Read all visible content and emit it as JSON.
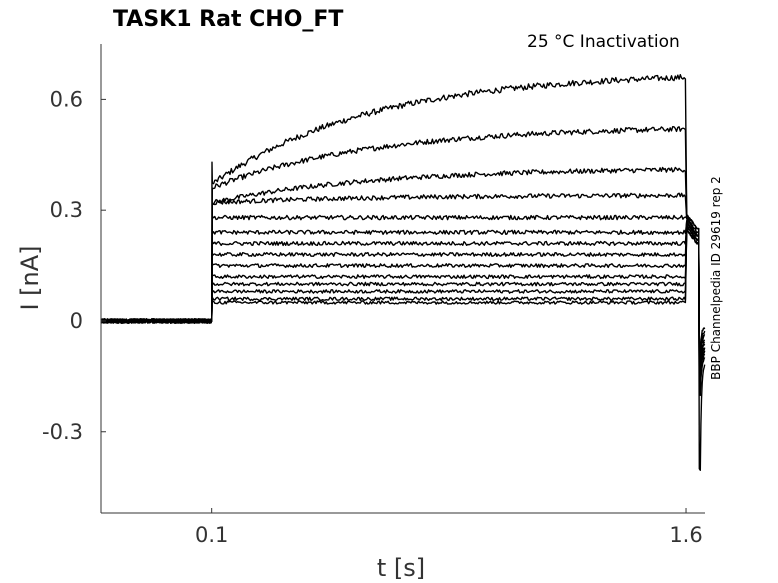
{
  "chart_data": {
    "type": "line",
    "title": "TASK1  Rat  CHO_FT",
    "subtitle": "25 °C  Inactivation",
    "side_label": "BBP Channelpedia ID 29619 rep 2",
    "xlabel": "t [s]",
    "ylabel": "I [nA]",
    "xlim": [
      -0.25,
      1.66
    ],
    "ylim": [
      -0.52,
      0.75
    ],
    "xticks": [
      0.1,
      1.6
    ],
    "xtick_labels": [
      "0.1",
      "1.6"
    ],
    "yticks": [
      0.6,
      0.3,
      0,
      -0.3
    ],
    "ytick_labels": [
      "0.6",
      "0.3",
      "0",
      "-0.3"
    ],
    "grid": false,
    "protocol": {
      "baseline_end": 0.1,
      "step_end": 1.6,
      "tail_end": 1.66,
      "baseline_level": 0.0
    },
    "series": [
      {
        "start": 0.37,
        "end": 0.66,
        "tail_start": 0.29,
        "tail_end": 0.25,
        "after_min": -0.07,
        "after_end": -0.02
      },
      {
        "start": 0.36,
        "end": 0.52,
        "tail_start": 0.29,
        "tail_end": 0.25,
        "after_min": -0.08,
        "after_end": -0.03
      },
      {
        "start": 0.32,
        "end": 0.41,
        "tail_start": 0.28,
        "tail_end": 0.24,
        "after_min": -0.09,
        "after_end": -0.04
      },
      {
        "start": 0.32,
        "end": 0.34,
        "tail_start": 0.28,
        "tail_end": 0.24,
        "after_min": -0.1,
        "after_end": -0.04
      },
      {
        "start": 0.28,
        "end": 0.28,
        "tail_start": 0.28,
        "tail_end": 0.23,
        "after_min": -0.11,
        "after_end": -0.05
      },
      {
        "start": 0.24,
        "end": 0.24,
        "tail_start": 0.27,
        "tail_end": 0.23,
        "after_min": -0.12,
        "after_end": -0.06
      },
      {
        "start": 0.21,
        "end": 0.21,
        "tail_start": 0.27,
        "tail_end": 0.23,
        "after_min": -0.13,
        "after_end": -0.06
      },
      {
        "start": 0.18,
        "end": 0.18,
        "tail_start": 0.27,
        "tail_end": 0.23,
        "after_min": -0.14,
        "after_end": -0.07
      },
      {
        "start": 0.15,
        "end": 0.15,
        "tail_start": 0.26,
        "tail_end": 0.22,
        "after_min": -0.15,
        "after_end": -0.07
      },
      {
        "start": 0.12,
        "end": 0.12,
        "tail_start": 0.26,
        "tail_end": 0.22,
        "after_min": -0.16,
        "after_end": -0.08
      },
      {
        "start": 0.1,
        "end": 0.1,
        "tail_start": 0.26,
        "tail_end": 0.22,
        "after_min": -0.17,
        "after_end": -0.08
      },
      {
        "start": 0.08,
        "end": 0.08,
        "tail_start": 0.25,
        "tail_end": 0.21,
        "after_min": -0.19,
        "after_end": -0.09
      },
      {
        "start": 0.06,
        "end": 0.06,
        "tail_start": 0.25,
        "tail_end": 0.21,
        "after_min": -0.2,
        "after_end": -0.1
      },
      {
        "start": 0.05,
        "end": 0.05,
        "tail_start": 0.25,
        "tail_end": 0.21,
        "after_min": -0.4,
        "after_end": -0.11
      }
    ]
  }
}
